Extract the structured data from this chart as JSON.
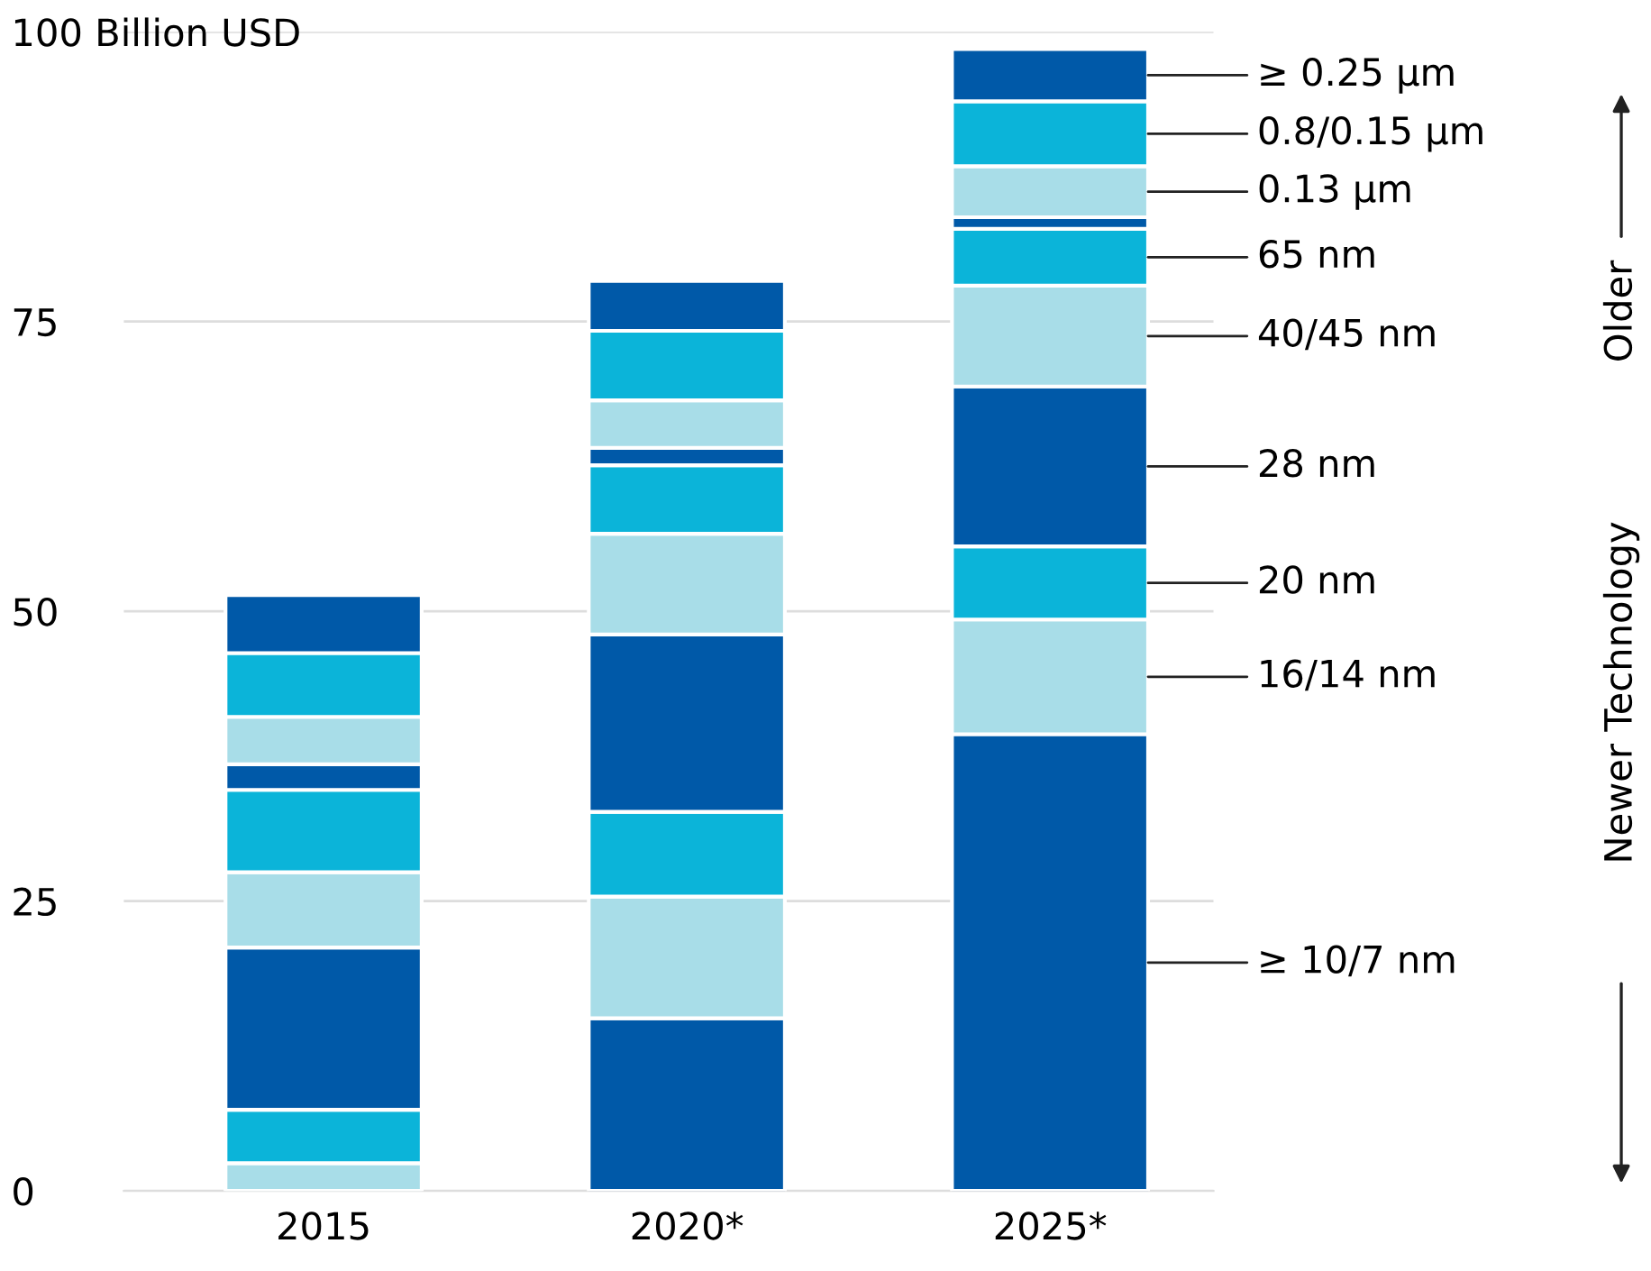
{
  "chart_data": {
    "type": "bar",
    "stacked": true,
    "categories": [
      "2015",
      "2020*",
      "2025*"
    ],
    "series": [
      {
        "name": "≥ 10/7 nm",
        "color": "#0059a8",
        "values": [
          0,
          14.9,
          39.4
        ]
      },
      {
        "name": "16/14 nm",
        "color": "#a8dde8",
        "values": [
          2.4,
          10.5,
          9.9
        ]
      },
      {
        "name": "20 nm",
        "color": "#0bb4d9",
        "values": [
          4.6,
          7.3,
          6.3
        ]
      },
      {
        "name": "28 nm",
        "color": "#0059a8",
        "values": [
          14.0,
          15.3,
          13.8
        ]
      },
      {
        "name": "40/45 nm",
        "color": "#a8dde8",
        "values": [
          6.5,
          8.7,
          8.7
        ]
      },
      {
        "name": "65 nm",
        "color": "#0bb4d9",
        "values": [
          7.1,
          5.9,
          4.9
        ]
      },
      {
        "color": "#0059a8",
        "values": [
          2.2,
          1.5,
          1.0
        ]
      },
      {
        "name": "0.13 µm",
        "color": "#a8dde8",
        "values": [
          4.1,
          4.1,
          4.4
        ]
      },
      {
        "name": "0.8/0.15 µm",
        "color": "#0bb4d9",
        "values": [
          5.5,
          6.0,
          5.6
        ]
      },
      {
        "name": "≥ 0.25 µm",
        "color": "#0059a8",
        "values": [
          5.0,
          4.3,
          4.5
        ]
      }
    ],
    "ylim": [
      0,
      100
    ],
    "yticks": [
      0,
      25,
      50,
      75,
      {
        "value": 100,
        "label": "100 Billion USD"
      }
    ],
    "grid": "y",
    "legend": false,
    "annotations": [
      "Older",
      "Newer Technology"
    ]
  }
}
